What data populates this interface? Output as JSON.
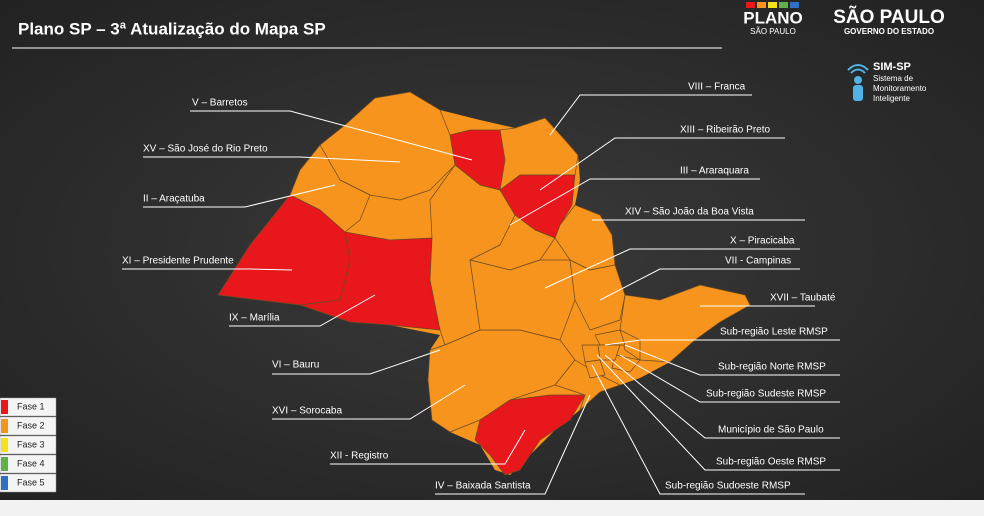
{
  "header": {
    "title": "Plano SP – 3ª Atualização do Mapa SP",
    "logos": [
      {
        "top": "PLANO",
        "bottom": "SÃO PAULO"
      },
      {
        "top": "SÃO PAULO",
        "bottom": "GOVERNO DO ESTADO"
      }
    ],
    "sim": {
      "name": "SIM-SP",
      "lines": [
        "Sistema de",
        "Monitoramento",
        "Inteligente"
      ]
    }
  },
  "legend": [
    {
      "label": "Fase 1",
      "color": "#e8171c"
    },
    {
      "label": "Fase 2",
      "color": "#f7941d"
    },
    {
      "label": "Fase 3",
      "color": "#f4e21a"
    },
    {
      "label": "Fase 4",
      "color": "#5fb246"
    },
    {
      "label": "Fase 5",
      "color": "#2f6fc4"
    }
  ],
  "regions": [
    {
      "label": "V – Barretos",
      "phase": 1
    },
    {
      "label": "XV – São José do Rio Preto",
      "phase": 2
    },
    {
      "label": "II – Araçatuba",
      "phase": 2
    },
    {
      "label": "XI – Presidente Prudente",
      "phase": 1
    },
    {
      "label": "IX – Marília",
      "phase": 1
    },
    {
      "label": "VI – Bauru",
      "phase": 2
    },
    {
      "label": "XVI – Sorocaba",
      "phase": 2
    },
    {
      "label": "XII - Registro",
      "phase": 1
    },
    {
      "label": "IV – Baixada Santista",
      "phase": 2
    },
    {
      "label": "VIII – Franca",
      "phase": 2
    },
    {
      "label": "XIII – Ribeirão Preto",
      "phase": 1
    },
    {
      "label": "III – Araraquara",
      "phase": 2
    },
    {
      "label": "XIV – São João da Boa Vista",
      "phase": 2
    },
    {
      "label": "X – Piracicaba",
      "phase": 2
    },
    {
      "label": "VII - Campinas",
      "phase": 2
    },
    {
      "label": "XVII – Taubaté",
      "phase": 2
    },
    {
      "label": "Sub-região Leste RMSP",
      "phase": 2
    },
    {
      "label": "Sub-região Norte RMSP",
      "phase": 2
    },
    {
      "label": "Sub-região Sudeste RMSP",
      "phase": 2
    },
    {
      "label": "Município de São Paulo",
      "phase": 2
    },
    {
      "label": "Sub-região Oeste RMSP",
      "phase": 2
    },
    {
      "label": "Sub-região Sudoeste RMSP",
      "phase": 2
    }
  ]
}
